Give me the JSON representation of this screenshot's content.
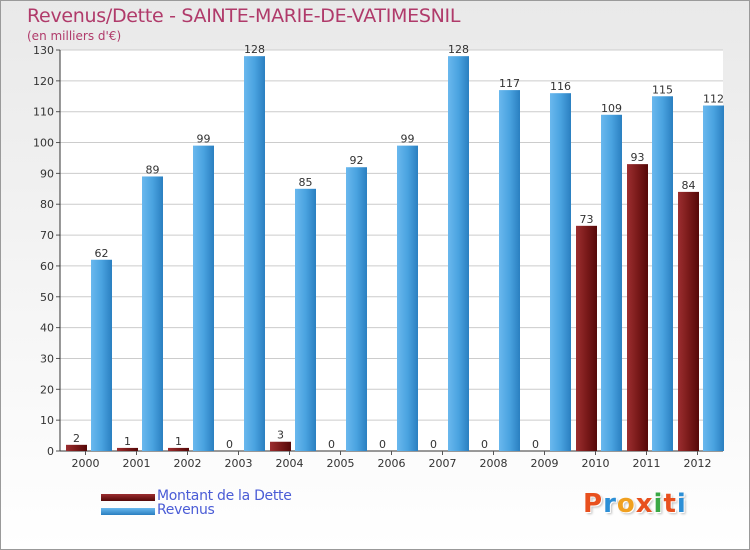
{
  "header": {
    "title": "Revenus/Dette - SAINTE-MARIE-DE-VATIMESNIL",
    "subtitle": "(en milliers d'€)"
  },
  "legend": {
    "dette_label": "Montant de la Dette",
    "revenus_label": "Revenus"
  },
  "logo": {
    "text": "Proxiti",
    "colors": [
      "#e8501e",
      "#2c8fd6",
      "#f0a020",
      "#e8501e",
      "#3aa845",
      "#e8501e",
      "#2c8fd6"
    ]
  },
  "colors": {
    "dette": "#7a1a1a",
    "revenus": "#4aa3e0",
    "text": "#b03a6a",
    "legend_text": "#4a5cd6"
  },
  "chart_data": {
    "type": "bar",
    "title": "Revenus/Dette - SAINTE-MARIE-DE-VATIMESNIL",
    "ylabel": "(en milliers d'€)",
    "xlabel": "",
    "ylim": [
      0,
      130
    ],
    "yticks": [
      0,
      10,
      20,
      30,
      40,
      50,
      60,
      70,
      80,
      90,
      100,
      110,
      120,
      130
    ],
    "grid": true,
    "categories": [
      "2000",
      "2001",
      "2002",
      "2003",
      "2004",
      "2005",
      "2006",
      "2007",
      "2008",
      "2009",
      "2010",
      "2011",
      "2012"
    ],
    "series": [
      {
        "name": "Montant de la Dette",
        "values": [
          2,
          1,
          1,
          0,
          3,
          0,
          0,
          0,
          0,
          0,
          73,
          93,
          84
        ]
      },
      {
        "name": "Revenus",
        "values": [
          62,
          89,
          99,
          128,
          85,
          92,
          99,
          128,
          117,
          116,
          109,
          115,
          112
        ]
      }
    ]
  }
}
